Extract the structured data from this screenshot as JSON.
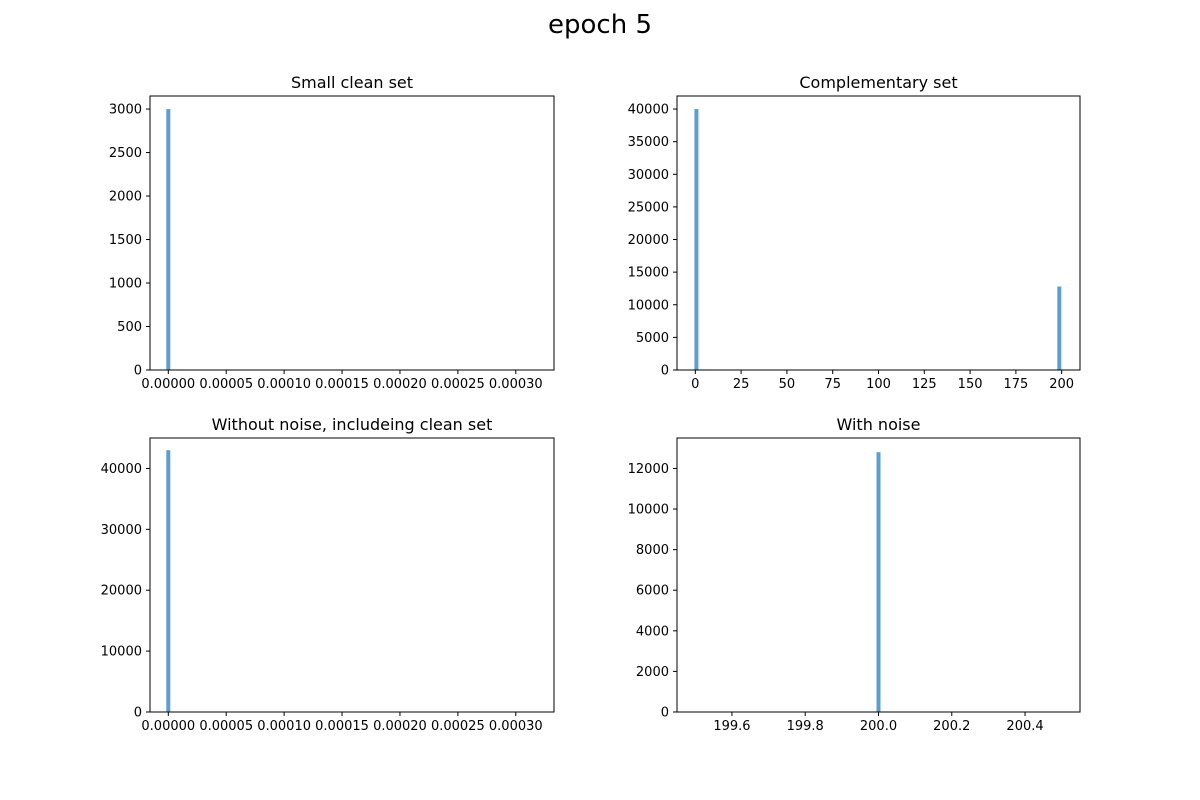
{
  "figure": {
    "title": "epoch 5"
  },
  "style": {
    "bar_color": "#5b9fd1",
    "axes_color": "#000000",
    "background": "#ffffff"
  },
  "chart_data": [
    {
      "type": "bar",
      "title": "Small clean set",
      "xlabel": "",
      "ylabel": "",
      "xlim": [
        -1.58e-05,
        0.000333
      ],
      "ylim": [
        0,
        3150
      ],
      "xticks": [
        0,
        5e-05,
        0.0001,
        0.00015,
        0.0002,
        0.00025,
        0.0003
      ],
      "xticklabels": [
        "0.00000",
        "0.00005",
        "0.00010",
        "0.00015",
        "0.00020",
        "0.00025",
        "0.00030"
      ],
      "yticks": [
        0,
        500,
        1000,
        1500,
        2000,
        2500,
        3000
      ],
      "yticklabels": [
        "0",
        "500",
        "1000",
        "1500",
        "2000",
        "2500",
        "3000"
      ],
      "bins": [
        {
          "x": 0.0,
          "count": 3000
        }
      ]
    },
    {
      "type": "bar",
      "title": "Complementary set",
      "xlabel": "",
      "ylabel": "",
      "xlim": [
        -10,
        210
      ],
      "ylim": [
        0,
        42000
      ],
      "xticks": [
        0,
        25,
        50,
        75,
        100,
        125,
        150,
        175,
        200
      ],
      "xticklabels": [
        "0",
        "25",
        "50",
        "75",
        "100",
        "125",
        "150",
        "175",
        "200"
      ],
      "yticks": [
        0,
        5000,
        10000,
        15000,
        20000,
        25000,
        30000,
        35000,
        40000
      ],
      "yticklabels": [
        "0",
        "5000",
        "10000",
        "15000",
        "20000",
        "25000",
        "30000",
        "35000",
        "40000"
      ],
      "bins": [
        {
          "x": 0.6,
          "count": 40000
        },
        {
          "x": 198.7,
          "count": 12800
        }
      ]
    },
    {
      "type": "bar",
      "title": "Without noise, includeing clean set",
      "xlabel": "",
      "ylabel": "",
      "xlim": [
        -1.58e-05,
        0.000333
      ],
      "ylim": [
        0,
        45000
      ],
      "xticks": [
        0,
        5e-05,
        0.0001,
        0.00015,
        0.0002,
        0.00025,
        0.0003
      ],
      "xticklabels": [
        "0.00000",
        "0.00005",
        "0.00010",
        "0.00015",
        "0.00020",
        "0.00025",
        "0.00030"
      ],
      "yticks": [
        0,
        10000,
        20000,
        30000,
        40000
      ],
      "yticklabels": [
        "0",
        "10000",
        "20000",
        "30000",
        "40000"
      ],
      "bins": [
        {
          "x": 0.0,
          "count": 43000
        }
      ]
    },
    {
      "type": "bar",
      "title": "With noise",
      "xlabel": "",
      "ylabel": "",
      "xlim": [
        199.45,
        200.55
      ],
      "ylim": [
        0,
        13500
      ],
      "xticks": [
        199.6,
        199.8,
        200.0,
        200.2,
        200.4
      ],
      "xticklabels": [
        "199.6",
        "199.8",
        "200.0",
        "200.2",
        "200.4"
      ],
      "yticks": [
        0,
        2000,
        4000,
        6000,
        8000,
        10000,
        12000
      ],
      "yticklabels": [
        "0",
        "2000",
        "4000",
        "6000",
        "8000",
        "10000",
        "12000"
      ],
      "bins": [
        {
          "x": 200.0,
          "count": 12800
        }
      ]
    }
  ]
}
